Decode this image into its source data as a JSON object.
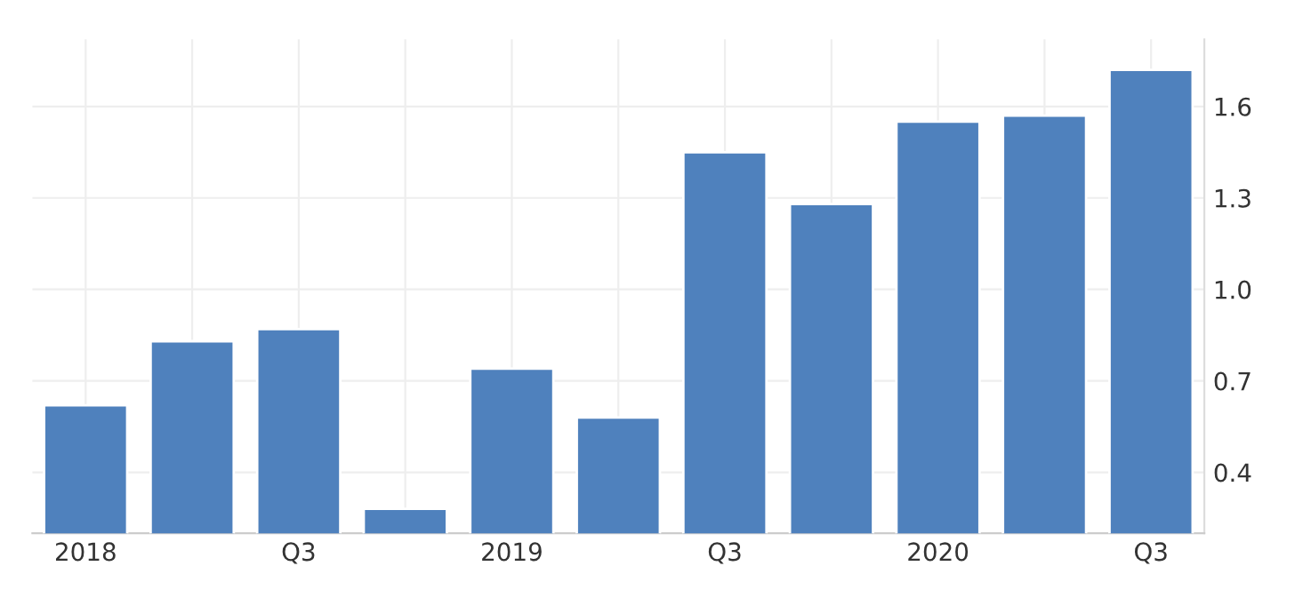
{
  "chart_data": {
    "type": "bar",
    "categories": [
      "2018",
      null,
      "Q3",
      null,
      "2019",
      null,
      "Q3",
      null,
      "2020",
      null,
      "Q3"
    ],
    "values": [
      0.62,
      0.83,
      0.87,
      0.28,
      0.74,
      0.58,
      1.45,
      1.28,
      1.55,
      1.57,
      1.72
    ],
    "color": "#4f81bd",
    "ylim": [
      0.2,
      1.82
    ],
    "yticks": [
      0.4,
      0.7,
      {
        "value": 1.0,
        "label": "1.0"
      },
      1.3,
      1.6
    ],
    "grid": true
  }
}
